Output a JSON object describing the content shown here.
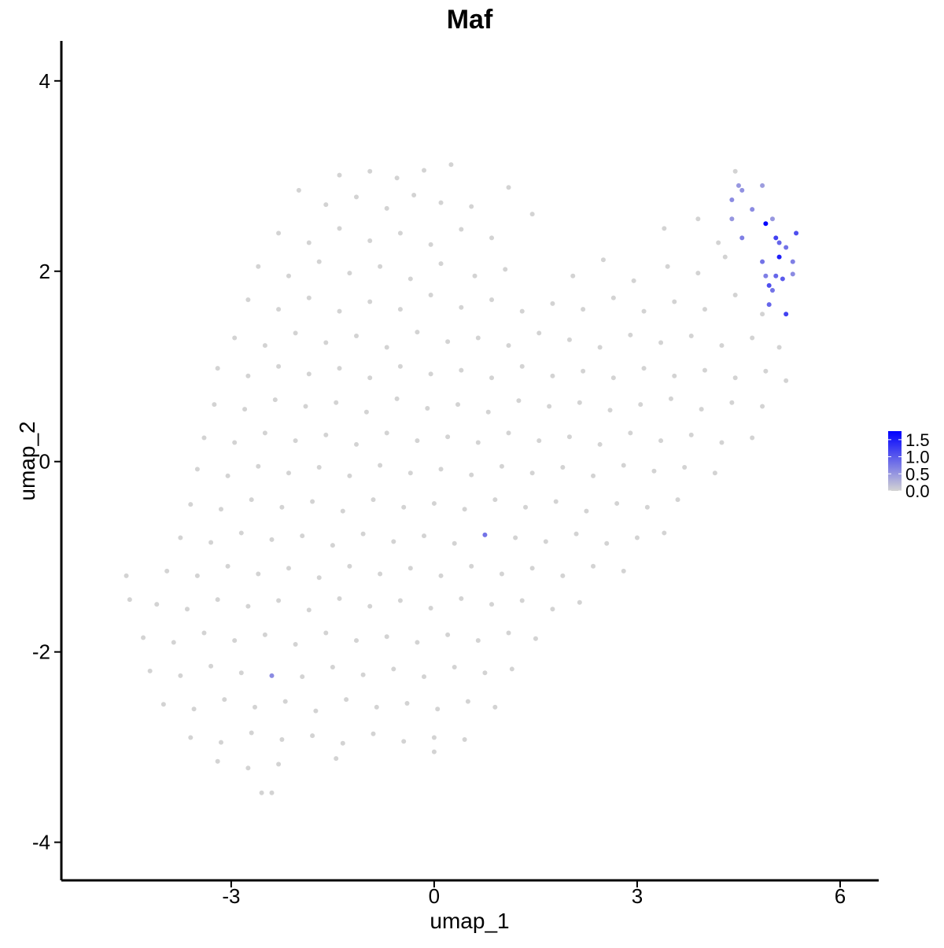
{
  "chart_data": {
    "type": "scatter",
    "title": "Maf",
    "x_label": "umap_1",
    "y_label": "umap_2",
    "xlim": [
      -5.51,
      6.57
    ],
    "ylim": [
      -4.4,
      4.42
    ],
    "xticks": [
      -3,
      0,
      3,
      6
    ],
    "yticks": [
      -4,
      -2,
      0,
      2,
      4
    ],
    "x": [
      -1.4,
      -0.95,
      -0.55,
      -0.15,
      0.25,
      4.45,
      -2.0,
      -1.6,
      -1.15,
      -0.7,
      -0.3,
      0.1,
      0.55,
      1.1,
      1.45,
      -2.3,
      -1.85,
      -1.4,
      -0.95,
      -0.5,
      -0.05,
      0.4,
      0.85,
      3.4,
      3.9,
      4.2,
      -2.6,
      -2.15,
      -1.7,
      -1.25,
      -0.8,
      -0.35,
      0.1,
      0.6,
      1.05,
      2.05,
      2.5,
      2.95,
      3.45,
      3.9,
      4.3,
      -2.75,
      -2.3,
      -1.85,
      -1.4,
      -0.95,
      -0.5,
      -0.05,
      0.4,
      0.85,
      1.3,
      1.75,
      2.2,
      2.65,
      3.1,
      3.55,
      4.0,
      4.45,
      4.85,
      -2.95,
      -2.5,
      -2.05,
      -1.6,
      -1.15,
      -0.7,
      -0.25,
      0.2,
      0.65,
      1.1,
      1.55,
      2.0,
      2.45,
      2.9,
      3.35,
      3.8,
      4.25,
      4.7,
      5.1,
      -3.2,
      -2.75,
      -2.3,
      -1.85,
      -1.4,
      -0.95,
      -0.5,
      -0.05,
      0.4,
      0.85,
      1.3,
      1.75,
      2.2,
      2.65,
      3.1,
      3.55,
      4.0,
      4.45,
      4.9,
      5.2,
      -3.25,
      -2.8,
      -2.35,
      -1.9,
      -1.45,
      -1.0,
      -0.55,
      -0.1,
      0.35,
      0.8,
      1.25,
      1.7,
      2.15,
      2.6,
      3.05,
      3.5,
      3.95,
      4.4,
      4.85,
      -3.4,
      -2.95,
      -2.5,
      -2.05,
      -1.6,
      -1.15,
      -0.7,
      -0.25,
      0.2,
      0.65,
      1.1,
      1.55,
      2.0,
      2.45,
      2.9,
      3.35,
      3.8,
      4.25,
      4.7,
      -3.5,
      -3.05,
      -2.6,
      -2.15,
      -1.7,
      -1.25,
      -0.8,
      -0.35,
      0.1,
      0.55,
      1.0,
      1.45,
      1.9,
      2.35,
      2.8,
      3.25,
      3.7,
      4.15,
      -3.6,
      -3.15,
      -2.7,
      -2.25,
      -1.8,
      -1.35,
      -0.9,
      -0.45,
      0.0,
      0.45,
      0.9,
      1.35,
      1.8,
      2.25,
      2.7,
      3.15,
      3.6,
      -3.75,
      -3.3,
      -2.85,
      -2.4,
      -1.95,
      -1.5,
      -1.05,
      -0.6,
      -0.15,
      0.3,
      1.2,
      1.65,
      2.1,
      2.55,
      3.0,
      3.4,
      -4.55,
      -3.95,
      -3.5,
      -3.05,
      -2.6,
      -2.15,
      -1.7,
      -1.25,
      -0.8,
      -0.35,
      0.1,
      0.55,
      1.0,
      1.45,
      1.9,
      2.35,
      2.8,
      -4.5,
      -4.1,
      -3.65,
      -3.2,
      -2.75,
      -2.3,
      -1.85,
      -1.4,
      -0.95,
      -0.5,
      -0.05,
      0.4,
      0.85,
      1.3,
      1.75,
      2.15,
      -4.3,
      -3.85,
      -3.4,
      -2.95,
      -2.5,
      -2.05,
      -1.6,
      -1.15,
      -0.7,
      -0.25,
      0.2,
      0.65,
      1.1,
      1.5,
      -4.2,
      -3.75,
      -3.3,
      -2.85,
      -1.95,
      -1.5,
      -1.05,
      -0.6,
      -0.15,
      0.3,
      0.75,
      1.15,
      -4.0,
      -3.55,
      -3.1,
      -2.65,
      -2.2,
      -1.75,
      -1.3,
      -0.85,
      -0.4,
      0.05,
      0.5,
      0.9,
      -3.6,
      -3.15,
      -2.7,
      -2.25,
      -1.8,
      -1.35,
      -0.9,
      -0.45,
      0.0,
      0.45,
      -3.2,
      -2.75,
      -2.3,
      -1.45,
      0.0,
      -2.55,
      -2.4,
      4.4,
      4.5,
      4.55,
      4.7,
      4.85,
      4.9,
      5.0,
      5.05,
      5.1,
      5.2,
      5.35,
      5.1,
      4.85,
      5.3,
      4.9,
      5.05,
      5.15,
      5.3,
      4.95,
      5.0,
      4.95,
      5.2,
      4.55,
      4.4,
      0.75,
      -2.4
    ],
    "values": [
      3.01,
      3.05,
      2.98,
      3.06,
      3.12,
      3.05,
      2.85,
      2.7,
      2.78,
      2.66,
      2.8,
      2.72,
      2.68,
      2.88,
      2.6,
      2.4,
      2.3,
      2.45,
      2.32,
      2.4,
      2.28,
      2.44,
      2.35,
      2.45,
      2.55,
      2.3,
      2.05,
      1.95,
      2.1,
      1.98,
      2.05,
      1.92,
      2.08,
      1.95,
      2.02,
      1.95,
      2.12,
      1.9,
      2.05,
      1.98,
      2.15,
      1.7,
      1.6,
      1.72,
      1.58,
      1.68,
      1.6,
      1.75,
      1.62,
      1.7,
      1.58,
      1.66,
      1.6,
      1.72,
      1.58,
      1.68,
      1.6,
      1.75,
      1.55,
      1.3,
      1.22,
      1.35,
      1.25,
      1.32,
      1.2,
      1.36,
      1.26,
      1.3,
      1.22,
      1.35,
      1.28,
      1.2,
      1.33,
      1.25,
      1.32,
      1.22,
      1.3,
      1.2,
      0.98,
      0.9,
      1.0,
      0.92,
      0.98,
      0.88,
      1.0,
      0.92,
      0.96,
      0.88,
      1.0,
      0.9,
      0.95,
      0.88,
      0.98,
      0.9,
      0.96,
      0.88,
      0.95,
      0.85,
      0.6,
      0.55,
      0.65,
      0.58,
      0.62,
      0.52,
      0.66,
      0.56,
      0.6,
      0.52,
      0.64,
      0.58,
      0.62,
      0.54,
      0.6,
      0.66,
      0.55,
      0.62,
      0.58,
      0.25,
      0.2,
      0.3,
      0.22,
      0.28,
      0.18,
      0.3,
      0.22,
      0.26,
      0.2,
      0.3,
      0.22,
      0.26,
      0.18,
      0.3,
      0.22,
      0.28,
      0.2,
      0.25,
      -0.08,
      -0.15,
      -0.05,
      -0.12,
      -0.06,
      -0.15,
      -0.04,
      -0.12,
      -0.08,
      -0.14,
      -0.05,
      -0.12,
      -0.06,
      -0.15,
      -0.04,
      -0.1,
      -0.06,
      -0.12,
      -0.45,
      -0.5,
      -0.4,
      -0.48,
      -0.42,
      -0.52,
      -0.4,
      -0.48,
      -0.44,
      -0.5,
      -0.4,
      -0.48,
      -0.42,
      -0.52,
      -0.44,
      -0.48,
      -0.4,
      -0.8,
      -0.85,
      -0.75,
      -0.82,
      -0.78,
      -0.88,
      -0.76,
      -0.84,
      -0.78,
      -0.86,
      -0.8,
      -0.84,
      -0.76,
      -0.86,
      -0.8,
      -0.75,
      -1.2,
      -1.15,
      -1.2,
      -1.1,
      -1.18,
      -1.12,
      -1.22,
      -1.1,
      -1.18,
      -1.12,
      -1.2,
      -1.1,
      -1.18,
      -1.12,
      -1.2,
      -1.1,
      -1.15,
      -1.45,
      -1.5,
      -1.55,
      -1.45,
      -1.52,
      -1.46,
      -1.56,
      -1.44,
      -1.52,
      -1.46,
      -1.54,
      -1.44,
      -1.5,
      -1.46,
      -1.55,
      -1.48,
      -1.85,
      -1.9,
      -1.8,
      -1.88,
      -1.82,
      -1.92,
      -1.8,
      -1.88,
      -1.84,
      -1.9,
      -1.82,
      -1.88,
      -1.8,
      -1.86,
      -2.2,
      -2.25,
      -2.15,
      -2.22,
      -2.26,
      -2.16,
      -2.24,
      -2.18,
      -2.26,
      -2.16,
      -2.22,
      -2.18,
      -2.55,
      -2.6,
      -2.5,
      -2.58,
      -2.52,
      -2.62,
      -2.5,
      -2.58,
      -2.54,
      -2.6,
      -2.52,
      -2.58,
      -2.9,
      -2.95,
      -2.85,
      -2.92,
      -2.88,
      -2.96,
      -2.86,
      -2.94,
      -2.9,
      -2.92,
      -3.15,
      -3.22,
      -3.18,
      -3.12,
      -3.05,
      -3.48,
      -3.48,
      2.75,
      2.9,
      2.85,
      2.65,
      2.9,
      2.5,
      2.55,
      2.35,
      2.3,
      2.25,
      2.4,
      2.15,
      2.1,
      2.1,
      1.95,
      1.95,
      1.92,
      1.97,
      1.85,
      1.8,
      1.65,
      1.55,
      2.35,
      2.55,
      -0.77,
      -2.25
    ],
    "expression": [
      0,
      0,
      0,
      0,
      0,
      0,
      0,
      0,
      0,
      0,
      0,
      0,
      0,
      0,
      0,
      0,
      0,
      0,
      0,
      0,
      0,
      0,
      0,
      0,
      0,
      0,
      0,
      0,
      0,
      0,
      0,
      0,
      0,
      0,
      0,
      0,
      0,
      0,
      0,
      0,
      0,
      0,
      0,
      0,
      0,
      0,
      0,
      0,
      0,
      0,
      0,
      0,
      0,
      0,
      0,
      0,
      0,
      0,
      0,
      0,
      0,
      0,
      0,
      0,
      0,
      0,
      0,
      0,
      0,
      0,
      0,
      0,
      0,
      0,
      0,
      0,
      0,
      0,
      0,
      0,
      0,
      0,
      0,
      0,
      0,
      0,
      0,
      0,
      0,
      0,
      0,
      0,
      0,
      0,
      0,
      0,
      0,
      0,
      0,
      0,
      0,
      0,
      0,
      0,
      0,
      0,
      0,
      0,
      0,
      0,
      0,
      0,
      0,
      0,
      0,
      0,
      0,
      0,
      0,
      0,
      0,
      0,
      0,
      0,
      0,
      0,
      0,
      0,
      0,
      0,
      0,
      0,
      0,
      0,
      0,
      0,
      0,
      0,
      0,
      0,
      0,
      0,
      0,
      0,
      0,
      0,
      0,
      0,
      0,
      0,
      0,
      0,
      0,
      0,
      0,
      0,
      0,
      0,
      0,
      0,
      0,
      0,
      0,
      0,
      0,
      0,
      0,
      0,
      0,
      0,
      0,
      0,
      0,
      0,
      0,
      0,
      0,
      0,
      0,
      0,
      0,
      0,
      0,
      0,
      0,
      0,
      0,
      0,
      0,
      0,
      0,
      0,
      0,
      0,
      0,
      0,
      0,
      0,
      0,
      0,
      0,
      0,
      0,
      0,
      0,
      0,
      0,
      0,
      0,
      0,
      0,
      0,
      0,
      0,
      0,
      0,
      0,
      0,
      0,
      0,
      0,
      0,
      0,
      0,
      0,
      0,
      0,
      0,
      0,
      0,
      0,
      0,
      0,
      0,
      0,
      0,
      0,
      0,
      0,
      0,
      0,
      0,
      0,
      0,
      0,
      0,
      0,
      0,
      0,
      0,
      0,
      0,
      0,
      0,
      0,
      0,
      0,
      0,
      0,
      0,
      0,
      0,
      0,
      0,
      0,
      0,
      0,
      0,
      0,
      0,
      0,
      0,
      0,
      0,
      0,
      0.6,
      0.5,
      0.55,
      0.6,
      0.45,
      1.7,
      0.5,
      1.2,
      0.9,
      0.8,
      1.1,
      1.5,
      0.8,
      0.7,
      0.7,
      0.9,
      1.0,
      0.6,
      1.1,
      0.8,
      0.9,
      1.2,
      0.7,
      0.5,
      0.8,
      0.6
    ],
    "colorbar": {
      "lim": [
        0,
        1.75
      ],
      "colors": [
        "#d3d3d3",
        "#0000ff"
      ],
      "ticks": [
        {
          "value": 0,
          "label": "0.0"
        },
        {
          "value": 0.5,
          "label": "0.5"
        },
        {
          "value": 1,
          "label": "1.0"
        },
        {
          "value": 1.5,
          "label": "1.5"
        }
      ]
    }
  }
}
